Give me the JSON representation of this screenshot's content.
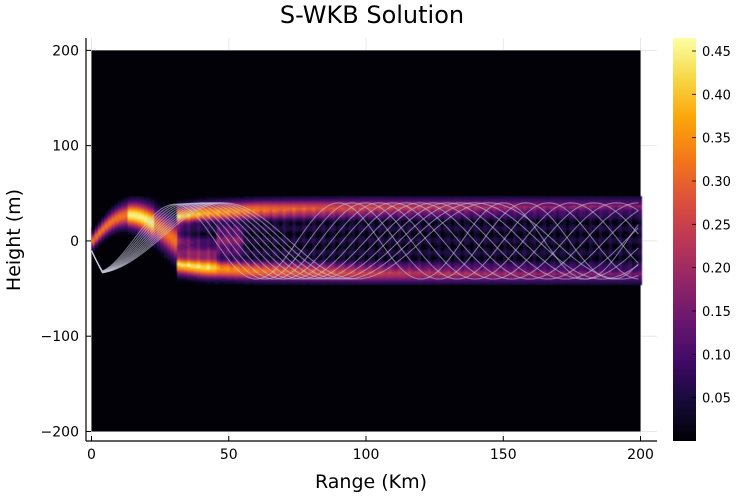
{
  "chart_data": {
    "type": "heatmap",
    "title": "S-WKB Solution",
    "xlabel": "Range (Km)",
    "ylabel": "Height (m)",
    "xlim": [
      -2,
      206
    ],
    "ylim": [
      -210,
      213
    ],
    "data_extent": {
      "x": [
        0,
        200
      ],
      "y": [
        -200,
        200
      ]
    },
    "x_ticks": [
      0,
      50,
      100,
      150,
      200
    ],
    "x_tick_labels": [
      "0",
      "50",
      "100",
      "150",
      "200"
    ],
    "y_ticks": [
      -200,
      -100,
      0,
      100,
      200
    ],
    "y_tick_labels": [
      "−200",
      "−100",
      "0",
      "100",
      "200"
    ],
    "colormap": "inferno",
    "colorbar": {
      "range": [
        0.0,
        0.465
      ],
      "ticks": [
        0.05,
        0.1,
        0.15,
        0.2,
        0.25,
        0.3,
        0.35,
        0.4,
        0.45
      ],
      "tick_labels": [
        "0.05",
        "0.10",
        "0.15",
        "0.20",
        "0.25",
        "0.30",
        "0.35",
        "0.40",
        "0.45"
      ],
      "placement": "right"
    },
    "field": {
      "description_of_pattern": "Gaussian beam oscillating about height 0, focusing near 15-20 km and spreading into a band ~ +/-35 m beyond 60 km with interference fringes",
      "envelope_halfwidth_m": [
        [
          0,
          10
        ],
        [
          10,
          15
        ],
        [
          20,
          22
        ],
        [
          30,
          26
        ],
        [
          40,
          30
        ],
        [
          60,
          33
        ],
        [
          100,
          35
        ],
        [
          150,
          36
        ],
        [
          200,
          37
        ]
      ]
    },
    "ray_overlay": {
      "color": "#c8c8dc",
      "ray_count": 12,
      "first_peak_km": 15,
      "amplitude_m": 40
    },
    "grid": true,
    "legend": "none"
  }
}
